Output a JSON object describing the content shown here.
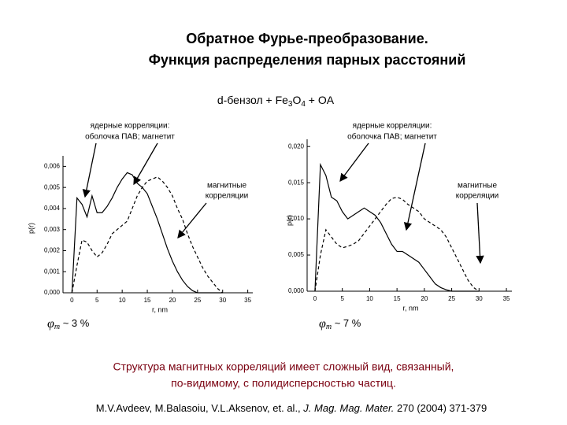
{
  "slide": {
    "title": [
      "Обратное Фурье-преобразование.",
      "Функция распределения парных расстояний"
    ],
    "sample": [
      "d-бензол + Fe",
      "3",
      "O",
      "4",
      " + OA"
    ],
    "conclusion": [
      "Структура магнитных корреляций имеет сложный вид, связанный,",
      "по-видимому, с полидисперсностью частиц."
    ],
    "citation": [
      "M.V.Avdeev, M.Balasoiu, V.L.Aksenov, et. al., ",
      "J. Mag. Mag. Mater.",
      " 270 (2004) 371-379"
    ]
  },
  "chart_data": [
    {
      "type": "line",
      "ylabel": "p(r)",
      "xlabel": "r, nm",
      "annotations": [
        "ядерные корреляции:",
        "оболочка ПАВ;  магнетит",
        "магнитные",
        "корреляции"
      ],
      "volume_fraction": [
        "φ",
        "m",
        " ~ 3 %"
      ],
      "xlim": [
        -1,
        36
      ],
      "xticks": [
        0,
        5,
        10,
        15,
        20,
        25,
        30,
        35
      ],
      "ylim": [
        0,
        0.0065
      ],
      "yticks": [
        {
          "value": 0,
          "label": "0,000"
        },
        {
          "value": 0.001,
          "label": "0,001"
        },
        {
          "value": 0.002,
          "label": "0,002"
        },
        {
          "value": 0.003,
          "label": "0,003"
        },
        {
          "value": 0.004,
          "label": "0,004"
        },
        {
          "value": 0.005,
          "label": "0,005"
        },
        {
          "value": 0.006,
          "label": "0,006"
        }
      ],
      "x": [
        0,
        1,
        2,
        3,
        4,
        5,
        6,
        7,
        8,
        9,
        10,
        11,
        12,
        13,
        14,
        15,
        16,
        17,
        18,
        19,
        20,
        21,
        22,
        23,
        24,
        25,
        26,
        27,
        28,
        29,
        30
      ],
      "series": [
        {
          "color": "#000000",
          "line_style": "solid",
          "values": [
            0,
            0.0045,
            0.0042,
            0.0036,
            0.0046,
            0.0038,
            0.0038,
            0.0041,
            0.0045,
            0.005,
            0.0054,
            0.0057,
            0.0056,
            0.0052,
            0.005,
            0.0047,
            0.0041,
            0.0035,
            0.0028,
            0.0021,
            0.0015,
            0.001,
            0.0006,
            0.0003,
            0.0001,
            0,
            0,
            0,
            0,
            0,
            0
          ]
        },
        {
          "color": "#000000",
          "line_style": "dashed",
          "values": [
            0,
            0.0013,
            0.0025,
            0.0024,
            0.002,
            0.0017,
            0.0019,
            0.0023,
            0.0028,
            0.003,
            0.0032,
            0.0034,
            0.004,
            0.0046,
            0.005,
            0.0053,
            0.0054,
            0.0055,
            0.0053,
            0.005,
            0.0046,
            0.004,
            0.0035,
            0.0028,
            0.0022,
            0.0017,
            0.0012,
            0.0008,
            0.0005,
            0.0002,
            0
          ]
        }
      ]
    },
    {
      "type": "line",
      "ylabel": "p(r)",
      "xlabel": "r, nm",
      "annotations": [
        "ядерные корреляции:",
        "оболочка ПАВ;  магнетит",
        "магнитные",
        "корреляции"
      ],
      "volume_fraction": [
        "φ",
        "m",
        " ~ 7 %"
      ],
      "xlim": [
        -1,
        36
      ],
      "xticks": [
        0,
        5,
        10,
        15,
        20,
        25,
        30,
        35
      ],
      "ylim": [
        0,
        0.021
      ],
      "yticks": [
        {
          "value": 0,
          "label": "0,000"
        },
        {
          "value": 0.005,
          "label": "0,005"
        },
        {
          "value": 0.01,
          "label": "0,010"
        },
        {
          "value": 0.015,
          "label": "0,015"
        },
        {
          "value": 0.02,
          "label": "0,020"
        }
      ],
      "x": [
        0,
        1,
        2,
        3,
        4,
        5,
        6,
        7,
        8,
        9,
        10,
        11,
        12,
        13,
        14,
        15,
        16,
        17,
        18,
        19,
        20,
        21,
        22,
        23,
        24,
        25,
        26,
        27,
        28,
        29,
        30
      ],
      "series": [
        {
          "color": "#000000",
          "line_style": "solid",
          "values": [
            0,
            0.0175,
            0.016,
            0.013,
            0.0125,
            0.011,
            0.01,
            0.0105,
            0.011,
            0.0115,
            0.011,
            0.0105,
            0.0095,
            0.008,
            0.0065,
            0.0055,
            0.0055,
            0.005,
            0.0045,
            0.004,
            0.003,
            0.002,
            0.001,
            0.0005,
            0.0002,
            0,
            0,
            0,
            0,
            0,
            0
          ]
        },
        {
          "color": "#000000",
          "line_style": "dashed",
          "values": [
            0,
            0.005,
            0.0085,
            0.0075,
            0.0065,
            0.006,
            0.0062,
            0.0065,
            0.007,
            0.008,
            0.009,
            0.01,
            0.011,
            0.012,
            0.0128,
            0.013,
            0.0127,
            0.012,
            0.0115,
            0.011,
            0.01,
            0.0095,
            0.009,
            0.0085,
            0.0075,
            0.006,
            0.0045,
            0.003,
            0.0015,
            0.0005,
            0
          ]
        }
      ]
    }
  ]
}
